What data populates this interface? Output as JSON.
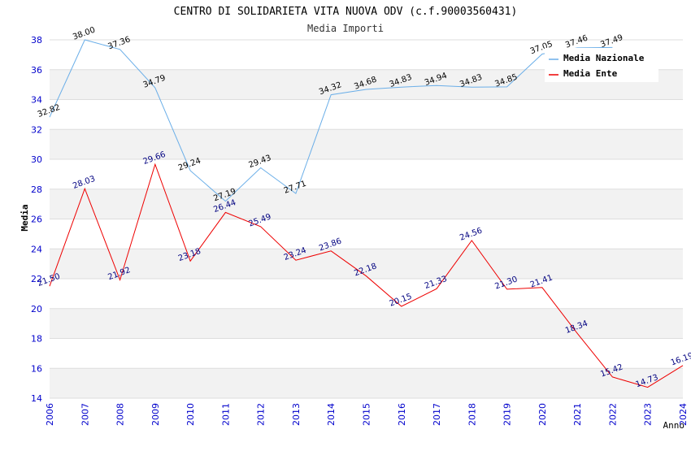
{
  "chart_data": {
    "type": "line",
    "title": "CENTRO DI SOLIDARIETA VITA NUOVA ODV (c.f.90003560431)",
    "subtitle": "Media Importi",
    "xlabel": "Anno",
    "ylabel": "Media",
    "ylim": [
      14,
      38
    ],
    "yticks": [
      "14",
      "16",
      "18",
      "20",
      "22",
      "24",
      "26",
      "28",
      "30",
      "32",
      "34",
      "36",
      "38"
    ],
    "categories": [
      "2006",
      "2007",
      "2008",
      "2009",
      "2010",
      "2011",
      "2012",
      "2013",
      "2014",
      "2015",
      "2016",
      "2017",
      "2018",
      "2019",
      "2020",
      "2021",
      "2022",
      "2023",
      "2024"
    ],
    "grid": true,
    "legend_position": "top-right",
    "series": [
      {
        "name": "Media Nazionale",
        "color": "#6aaee8",
        "values": [
          32.82,
          38.0,
          37.36,
          34.79,
          29.24,
          27.19,
          29.43,
          27.71,
          34.32,
          34.68,
          34.83,
          34.94,
          34.83,
          34.85,
          37.05,
          37.46,
          37.49,
          null,
          null
        ],
        "labels": [
          "32.82",
          "38.00",
          "37.36",
          "34.79",
          "29.24",
          "27.19",
          "29.43",
          "27.71",
          "34.32",
          "34.68",
          "34.83",
          "34.94",
          "34.83",
          "34.85",
          "37.05",
          "37.46",
          "37.49",
          "",
          ""
        ]
      },
      {
        "name": "Media Ente",
        "color": "#ee0000",
        "values": [
          21.5,
          28.03,
          21.92,
          29.66,
          23.18,
          26.44,
          25.49,
          23.24,
          23.86,
          22.18,
          20.15,
          21.33,
          24.56,
          21.3,
          21.41,
          18.34,
          15.42,
          14.73,
          16.19
        ],
        "labels": [
          "21.50",
          "28.03",
          "21.92",
          "29.66",
          "23.18",
          "26.44",
          "25.49",
          "23.24",
          "23.86",
          "22.18",
          "20.15",
          "21.33",
          "24.56",
          "21.30",
          "21.41",
          "18.34",
          "15.42",
          "14.73",
          "16.19"
        ]
      }
    ]
  }
}
